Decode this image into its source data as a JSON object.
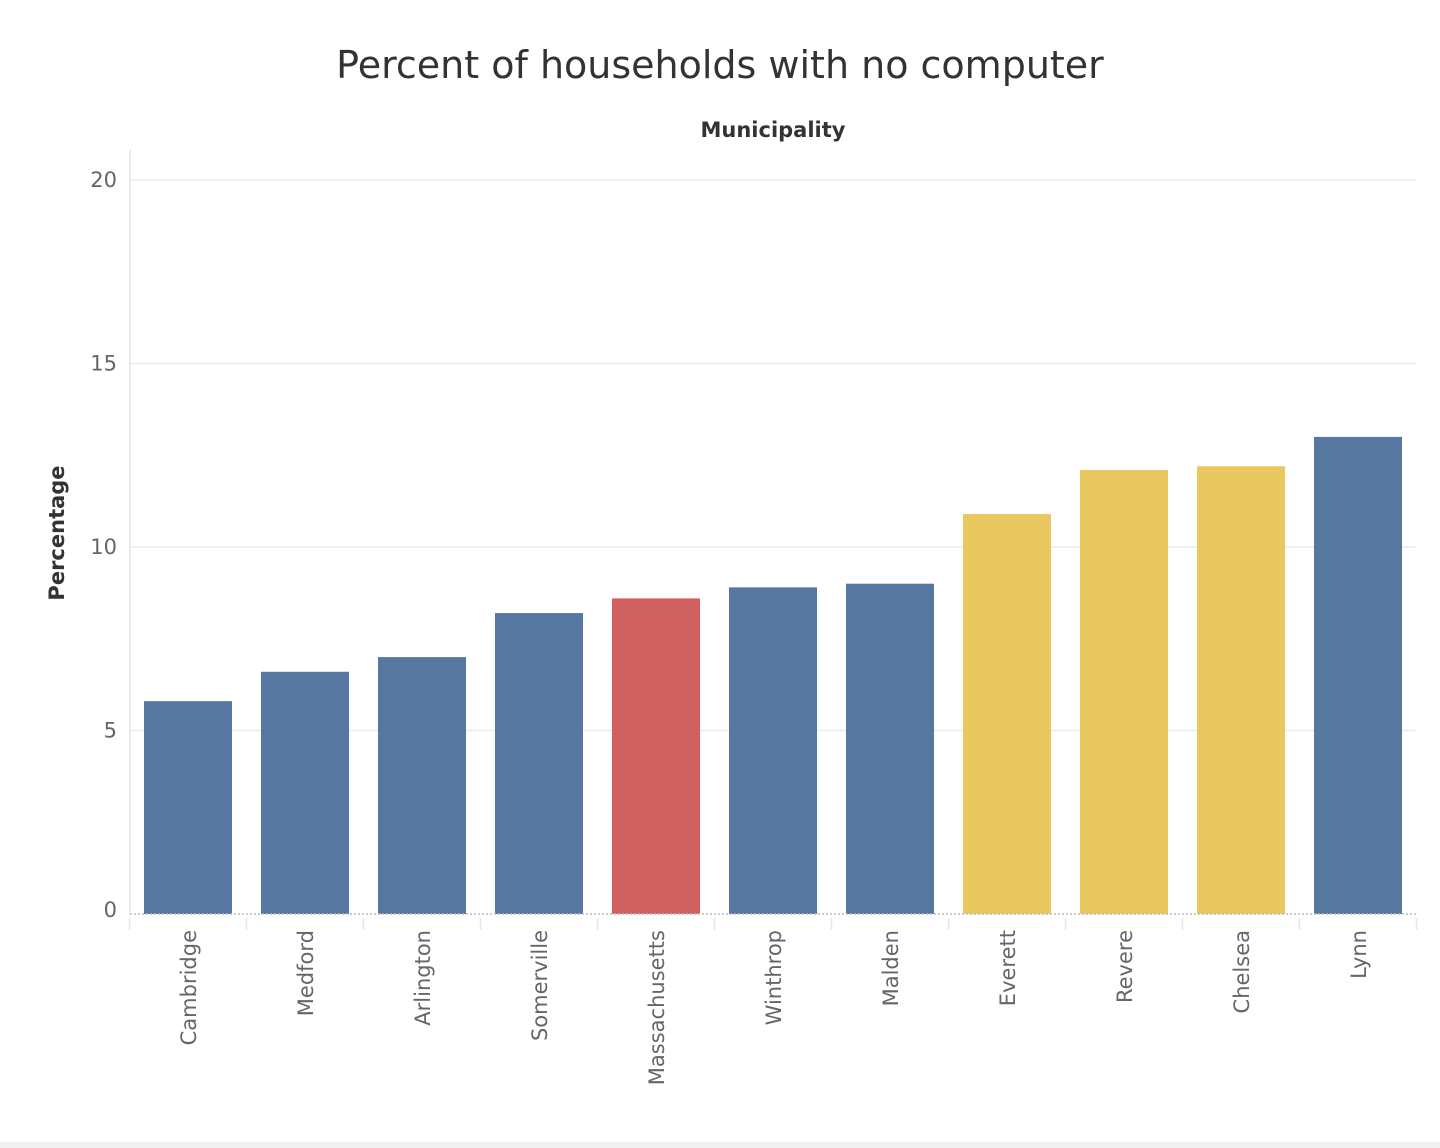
{
  "chart_data": {
    "type": "bar",
    "title": "Percent of households with no computer",
    "header": "Municipality",
    "xlabel": "",
    "ylabel": "Percentage",
    "ylim": [
      0,
      20
    ],
    "yticks": [
      0,
      5,
      10,
      15,
      20
    ],
    "grid": true,
    "categories": [
      "Cambridge",
      "Medford",
      "Arlington",
      "Somerville",
      "Massachusetts",
      "Winthrop",
      "Malden",
      "Everett",
      "Revere",
      "Chelsea",
      "Lynn"
    ],
    "values": [
      5.8,
      6.6,
      7.0,
      8.2,
      8.6,
      8.9,
      9.0,
      10.9,
      12.1,
      12.2,
      13.0
    ],
    "colors": [
      "#5677a0",
      "#5677a0",
      "#5677a0",
      "#5677a0",
      "#d16060",
      "#5677a0",
      "#5677a0",
      "#e8c85f",
      "#e8c85f",
      "#e8c85f",
      "#5677a0"
    ]
  }
}
